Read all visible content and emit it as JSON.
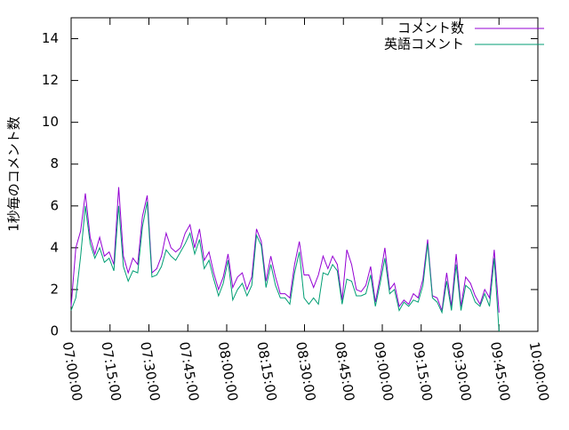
{
  "chart_data": {
    "type": "line",
    "ylabel": "1秒毎のコメント数",
    "xlim": [
      "07:00:00",
      "10:00:00"
    ],
    "xticks": [
      "07:00:00",
      "07:15:00",
      "07:30:00",
      "07:45:00",
      "08:00:00",
      "08:15:00",
      "08:30:00",
      "08:45:00",
      "09:00:00",
      "09:15:00",
      "09:30:00",
      "09:45:00",
      "10:00:00"
    ],
    "ylim": [
      0,
      15
    ],
    "yticks": [
      0,
      2,
      4,
      6,
      8,
      10,
      12,
      14
    ],
    "legend": "top-right",
    "x": [
      "07:00:00",
      "07:01:50",
      "07:03:40",
      "07:05:30",
      "07:07:20",
      "07:09:10",
      "07:11:00",
      "07:12:50",
      "07:14:40",
      "07:16:30",
      "07:18:20",
      "07:20:10",
      "07:22:00",
      "07:23:50",
      "07:25:40",
      "07:27:30",
      "07:29:20",
      "07:31:10",
      "07:33:00",
      "07:34:50",
      "07:36:40",
      "07:38:30",
      "07:40:20",
      "07:42:10",
      "07:44:00",
      "07:45:50",
      "07:47:40",
      "07:49:30",
      "07:51:20",
      "07:53:10",
      "07:55:00",
      "07:56:50",
      "07:58:40",
      "08:00:30",
      "08:02:20",
      "08:04:10",
      "08:06:00",
      "08:07:50",
      "08:09:40",
      "08:11:30",
      "08:13:20",
      "08:15:10",
      "08:17:00",
      "08:18:50",
      "08:20:40",
      "08:22:30",
      "08:24:20",
      "08:26:10",
      "08:28:00",
      "08:29:50",
      "08:31:40",
      "08:33:30",
      "08:35:20",
      "08:37:10",
      "08:39:00",
      "08:40:50",
      "08:42:40",
      "08:44:30",
      "08:46:20",
      "08:48:10",
      "08:50:00",
      "08:51:50",
      "08:53:40",
      "08:55:30",
      "08:57:20",
      "08:59:10",
      "09:01:00",
      "09:02:50",
      "09:04:40",
      "09:06:30",
      "09:08:20",
      "09:10:10",
      "09:12:00",
      "09:13:50",
      "09:15:40",
      "09:17:30",
      "09:19:20",
      "09:21:10",
      "09:23:00",
      "09:24:50",
      "09:26:40",
      "09:28:30",
      "09:30:20",
      "09:32:10",
      "09:34:00",
      "09:35:50",
      "09:37:40",
      "09:39:30",
      "09:41:20",
      "09:43:10",
      "09:45:00"
    ],
    "series": [
      {
        "name": "コメント数",
        "color": "#9400d3",
        "values": [
          1.2,
          4.0,
          4.8,
          6.6,
          4.5,
          3.7,
          4.5,
          3.6,
          3.8,
          3.2,
          6.9,
          3.6,
          2.8,
          3.5,
          3.2,
          5.5,
          6.5,
          2.8,
          3.0,
          3.6,
          4.7,
          4.0,
          3.8,
          4.0,
          4.7,
          5.1,
          4.0,
          4.9,
          3.4,
          3.8,
          2.8,
          2.0,
          2.6,
          3.7,
          2.1,
          2.6,
          2.8,
          2.0,
          2.6,
          4.9,
          4.3,
          2.4,
          3.6,
          2.6,
          1.8,
          1.8,
          1.6,
          3.2,
          4.3,
          2.7,
          2.7,
          2.1,
          2.7,
          3.6,
          3.0,
          3.6,
          3.2,
          1.5,
          3.9,
          3.2,
          2.0,
          1.9,
          2.2,
          3.1,
          1.4,
          2.6,
          4.0,
          2.0,
          2.3,
          1.2,
          1.5,
          1.3,
          1.8,
          1.6,
          2.5,
          4.4,
          1.7,
          1.6,
          1.0,
          2.8,
          1.2,
          3.7,
          1.2,
          2.6,
          2.3,
          1.7,
          1.3,
          2.0,
          1.6,
          3.9,
          0.9
        ]
      },
      {
        "name": "英語コメント",
        "color": "#009e73",
        "values": [
          1.0,
          1.6,
          3.6,
          6.0,
          4.2,
          3.5,
          4.0,
          3.3,
          3.5,
          2.9,
          6.0,
          3.1,
          2.4,
          2.9,
          2.8,
          5.0,
          6.2,
          2.6,
          2.7,
          3.1,
          3.9,
          3.6,
          3.4,
          3.8,
          4.2,
          4.7,
          3.7,
          4.4,
          3.0,
          3.4,
          2.5,
          1.7,
          2.3,
          3.4,
          1.5,
          2.0,
          2.3,
          1.7,
          2.2,
          4.6,
          4.1,
          2.1,
          3.2,
          2.2,
          1.6,
          1.6,
          1.3,
          2.8,
          3.8,
          1.6,
          1.3,
          1.6,
          1.3,
          2.8,
          2.7,
          3.2,
          2.9,
          1.3,
          2.5,
          2.4,
          1.7,
          1.7,
          1.8,
          2.7,
          1.2,
          2.3,
          3.5,
          1.8,
          2.0,
          1.0,
          1.4,
          1.2,
          1.5,
          1.4,
          2.2,
          4.2,
          1.6,
          1.4,
          0.9,
          2.4,
          1.0,
          3.2,
          1.0,
          2.2,
          2.0,
          1.4,
          1.2,
          1.8,
          1.2,
          3.5,
          0.0
        ]
      }
    ]
  }
}
